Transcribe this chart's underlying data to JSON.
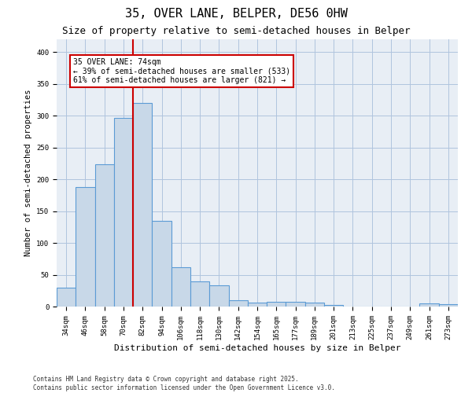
{
  "title1": "35, OVER LANE, BELPER, DE56 0HW",
  "title2": "Size of property relative to semi-detached houses in Belper",
  "xlabel": "Distribution of semi-detached houses by size in Belper",
  "ylabel": "Number of semi-detached properties",
  "categories": [
    "34sqm",
    "46sqm",
    "58sqm",
    "70sqm",
    "82sqm",
    "94sqm",
    "106sqm",
    "118sqm",
    "130sqm",
    "142sqm",
    "154sqm",
    "165sqm",
    "177sqm",
    "189sqm",
    "201sqm",
    "213sqm",
    "225sqm",
    "237sqm",
    "249sqm",
    "261sqm",
    "273sqm"
  ],
  "values": [
    30,
    188,
    223,
    296,
    320,
    135,
    62,
    40,
    33,
    10,
    6,
    8,
    8,
    6,
    3,
    0,
    0,
    0,
    0,
    5,
    4
  ],
  "bar_color": "#c8d8e8",
  "bar_edge_color": "#5b9bd5",
  "bar_edge_width": 0.8,
  "grid_color": "#b0c4de",
  "background_color": "#e8eef5",
  "vline_x_index": 3.5,
  "vline_color": "#cc0000",
  "annotation_title": "35 OVER LANE: 74sqm",
  "annotation_line1": "← 39% of semi-detached houses are smaller (533)",
  "annotation_line2": "61% of semi-detached houses are larger (821) →",
  "annotation_box_color": "#ffffff",
  "annotation_box_edge": "#cc0000",
  "ylim": [
    0,
    420
  ],
  "yticks": [
    0,
    50,
    100,
    150,
    200,
    250,
    300,
    350,
    400
  ],
  "footnote1": "Contains HM Land Registry data © Crown copyright and database right 2025.",
  "footnote2": "Contains public sector information licensed under the Open Government Licence v3.0.",
  "title1_fontsize": 11,
  "title2_fontsize": 9,
  "xlabel_fontsize": 8,
  "ylabel_fontsize": 7.5,
  "tick_fontsize": 6.5,
  "annotation_fontsize": 7,
  "footnote_fontsize": 5.5
}
